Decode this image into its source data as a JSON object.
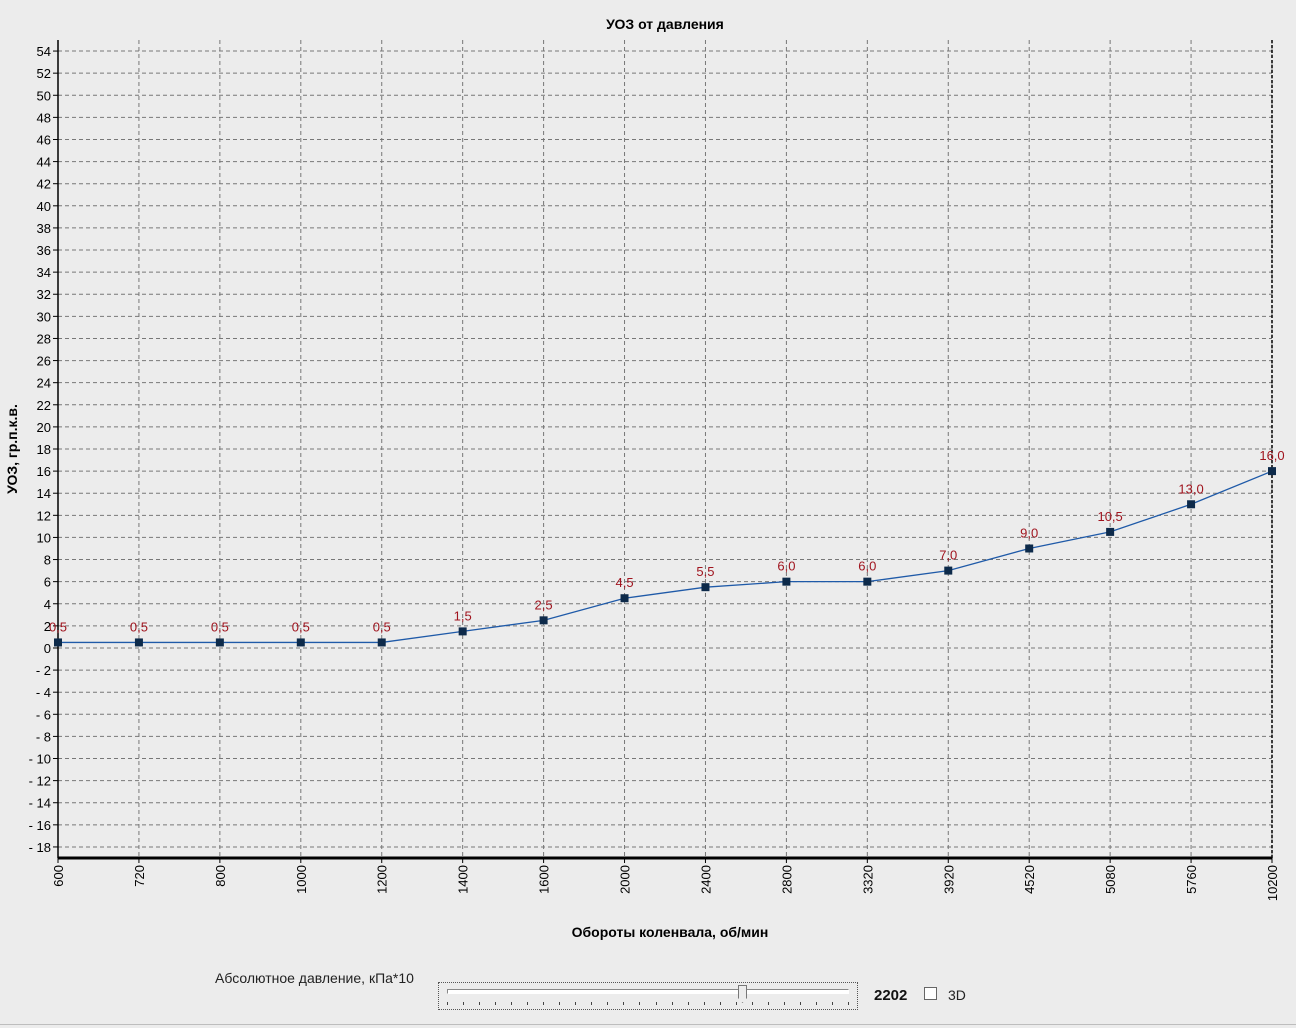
{
  "chart_data": {
    "type": "line",
    "title": "УОЗ от давления",
    "xlabel": "Обороты коленвала, об/мин",
    "ylabel": "УОЗ, гр.п.к.в.",
    "categories": [
      "600",
      "720",
      "800",
      "1000",
      "1200",
      "1400",
      "1600",
      "2000",
      "2400",
      "2800",
      "3320",
      "3920",
      "4520",
      "5080",
      "5760",
      "10200"
    ],
    "series": [
      {
        "values": [
          0.5,
          0.5,
          0.5,
          0.5,
          0.5,
          1.5,
          2.5,
          4.5,
          5.5,
          6.0,
          6.0,
          7.0,
          9.0,
          10.5,
          13.0,
          16.0
        ],
        "labels": [
          "0,5",
          "0,5",
          "0,5",
          "0,5",
          "0,5",
          "1,5",
          "2,5",
          "4,5",
          "5,5",
          "6,0",
          "6,0",
          "7,0",
          "9,0",
          "10,5",
          "13,0",
          "16,0"
        ],
        "line_color": "#1f5aa8",
        "marker_color": "#0d2a4a",
        "label_color": "#a0141e"
      }
    ],
    "ylim": [
      -19,
      55
    ],
    "ytick_step": 2,
    "yticks": [
      54,
      52,
      50,
      48,
      46,
      44,
      42,
      40,
      38,
      36,
      34,
      32,
      30,
      28,
      26,
      24,
      22,
      20,
      18,
      16,
      14,
      12,
      10,
      8,
      6,
      4,
      2,
      0,
      -2,
      -4,
      -6,
      -8,
      -10,
      -12,
      -14,
      -16,
      -18
    ],
    "ytick_labels": [
      "54",
      "52",
      "50",
      "48",
      "46",
      "44",
      "42",
      "40",
      "38",
      "36",
      "34",
      "32",
      "30",
      "28",
      "26",
      "24",
      "22",
      "20",
      "18",
      "16",
      "14",
      "12",
      "10",
      "8",
      "6",
      "4",
      "2",
      "0",
      "- 2",
      "- 4",
      "- 6",
      "- 8",
      "- 10",
      "- 12",
      "- 14",
      "- 16",
      "- 18"
    ],
    "grid": true,
    "legend": "none",
    "plot_background": "#ececec"
  },
  "controls": {
    "pressure_label": "Абсолютное давление, кПа*10",
    "pressure_value": "2202",
    "pressure_slider_fraction": 0.74,
    "checkbox_3d_label": "3D",
    "checkbox_3d_checked": false
  }
}
